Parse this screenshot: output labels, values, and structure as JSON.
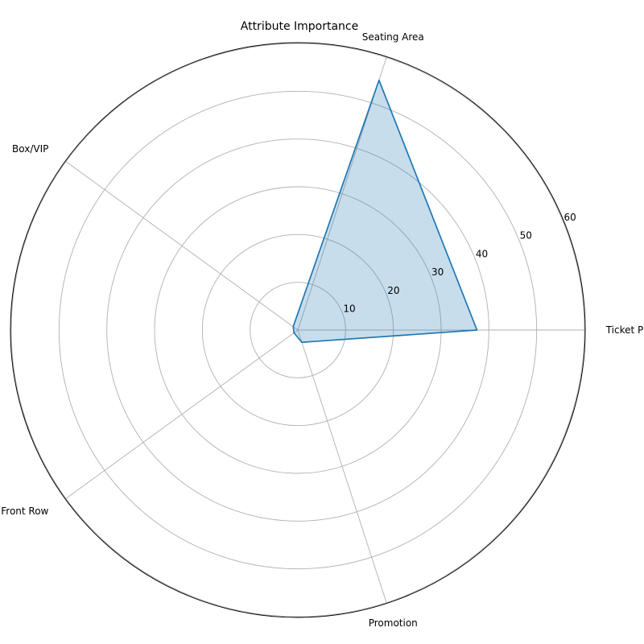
{
  "chart_data": {
    "type": "radar",
    "title": "Attribute Importance",
    "categories": [
      "Ticket Price",
      "Seating Area",
      "Box/VIP",
      "Front Row",
      "Promotion"
    ],
    "series": [
      {
        "values": [
          37.5,
          55,
          1.2,
          1.0,
          2.7
        ]
      }
    ],
    "rlim": [
      0,
      60
    ],
    "rticks": [
      10,
      20,
      30,
      40,
      50,
      60
    ],
    "grid": true,
    "colors": {
      "line": "#1f77b4",
      "fill": "#1f77b4",
      "grid": "#b0b0b0"
    }
  }
}
